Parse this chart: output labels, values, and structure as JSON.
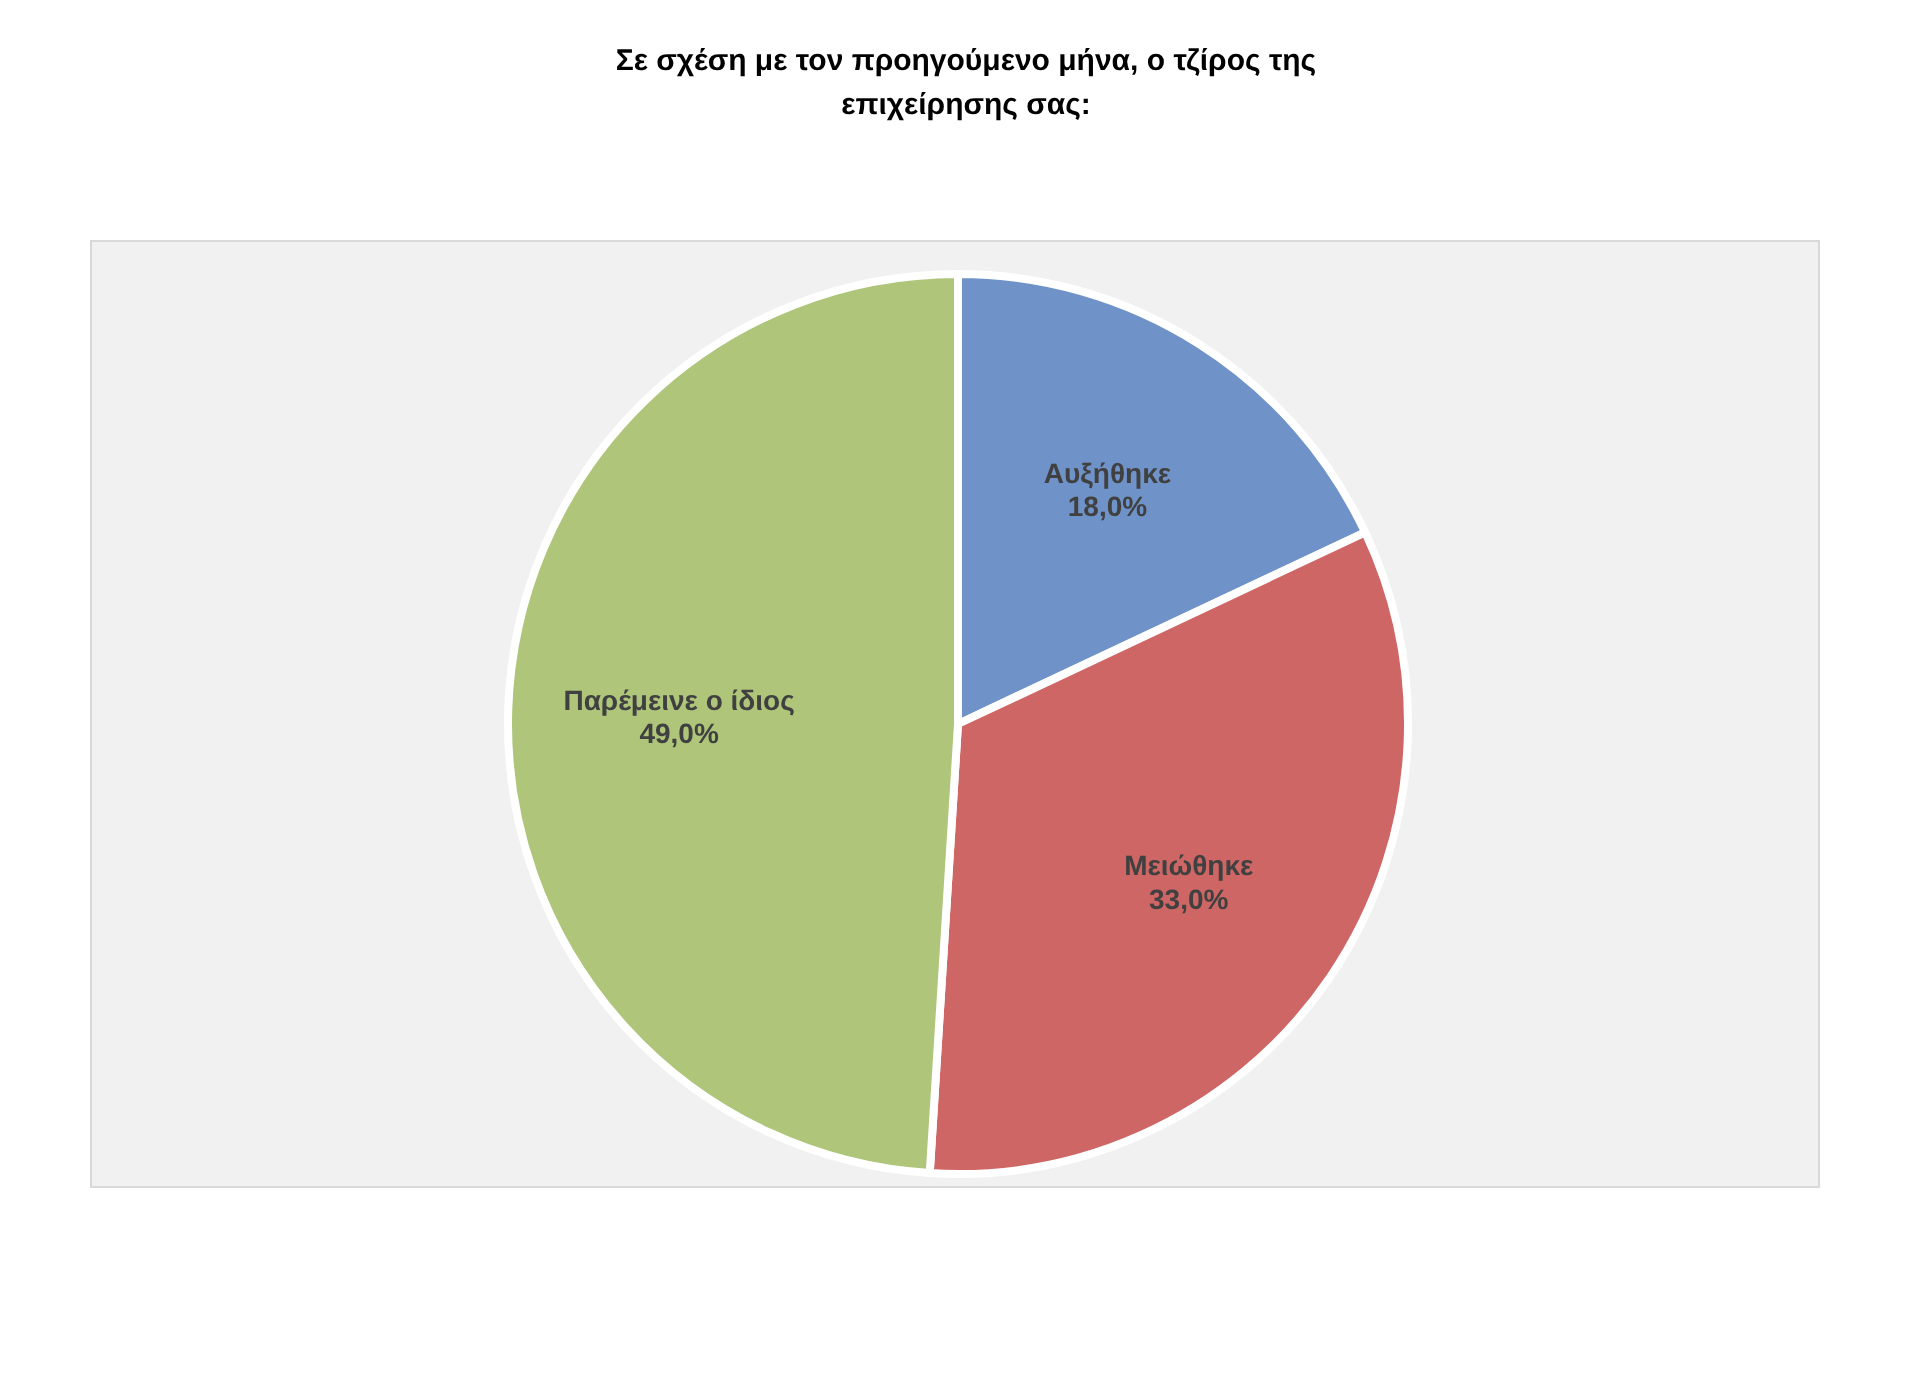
{
  "chart_data": {
    "type": "pie",
    "title": "Σε σχέση με τον προηγούμενο μήνα, ο τζίρος της επιχείρησης σας:",
    "categories": [
      "Αυξήθηκε",
      "Μειώθηκε",
      "Παρέμεινε ο ίδιος"
    ],
    "values": [
      18.0,
      33.0,
      49.0
    ],
    "colors": [
      "#6f93c8",
      "#cd6664",
      "#aec57a"
    ],
    "value_labels": [
      "18,0%",
      "33,0%",
      "49,0%"
    ],
    "legend": false
  }
}
